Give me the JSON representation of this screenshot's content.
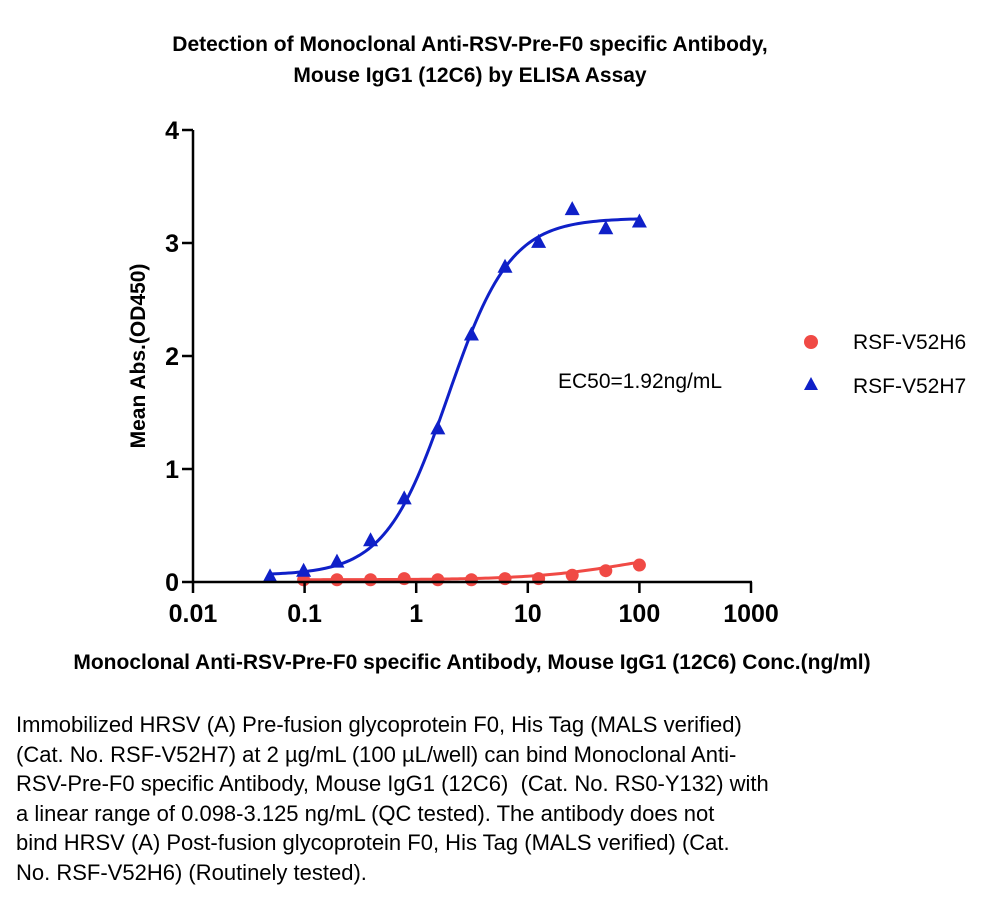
{
  "chart_data": {
    "type": "scatter",
    "title_lines": [
      "Detection of Monoclonal Anti-RSV-Pre-F0 specific Antibody,",
      "Mouse IgG1 (12C6) by ELISA Assay"
    ],
    "xlabel": "Monoclonal Anti-RSV-Pre-F0 specific Antibody, Mouse IgG1 (12C6) Conc.(ng/ml)",
    "ylabel": "Mean Abs.(OD450)",
    "xscale": "log",
    "xlim": [
      0.01,
      1000
    ],
    "ylim": [
      0,
      4
    ],
    "xticks": [
      0.01,
      0.1,
      1,
      10,
      100,
      1000
    ],
    "xtick_labels": [
      "0.01",
      "0.1",
      "1",
      "10",
      "100",
      "1000"
    ],
    "yticks": [
      0,
      1,
      2,
      3,
      4
    ],
    "ytick_labels": [
      "0",
      "1",
      "2",
      "3",
      "4"
    ],
    "grid": false,
    "legend_position": "right",
    "annotation": "EC50=1.92ng/mL",
    "series": [
      {
        "name": "RSF-V52H6",
        "color": "#f04a45",
        "marker": "circle",
        "x": [
          0.098,
          0.195,
          0.39,
          0.781,
          1.563,
          3.125,
          6.25,
          12.5,
          25,
          50,
          100
        ],
        "y": [
          0.02,
          0.02,
          0.02,
          0.03,
          0.02,
          0.02,
          0.03,
          0.03,
          0.06,
          0.1,
          0.15
        ],
        "fit": {
          "bottom": 0.02,
          "top": 0.3,
          "ec50": 80,
          "hill": 1.0
        }
      },
      {
        "name": "RSF-V52H7",
        "color": "#0f20c8",
        "marker": "triangle",
        "x": [
          0.049,
          0.098,
          0.195,
          0.39,
          0.781,
          1.563,
          3.125,
          6.25,
          12.5,
          25,
          50,
          100
        ],
        "y": [
          0.05,
          0.1,
          0.18,
          0.37,
          0.74,
          1.36,
          2.19,
          2.79,
          3.01,
          3.3,
          3.13,
          3.19
        ],
        "fit": {
          "bottom": 0.06,
          "top": 3.22,
          "ec50": 1.92,
          "hill": 1.55
        }
      }
    ]
  },
  "caption_lines": [
    "Immobilized HRSV (A) Pre-fusion glycoprotein F0, His Tag (MALS verified)",
    "(Cat. No. RSF-V52H7) at 2 µg/mL (100 µL/well) can bind Monoclonal Anti-",
    "RSV-Pre-F0 specific Antibody, Mouse IgG1 (12C6)  (Cat. No. RS0-Y132) with",
    "a linear range of 0.098-3.125 ng/mL (QC tested). The antibody does not",
    "bind HRSV (A) Post-fusion glycoprotein F0, His Tag (MALS verified) (Cat.",
    "No. RSF-V52H6) (Routinely tested)."
  ]
}
